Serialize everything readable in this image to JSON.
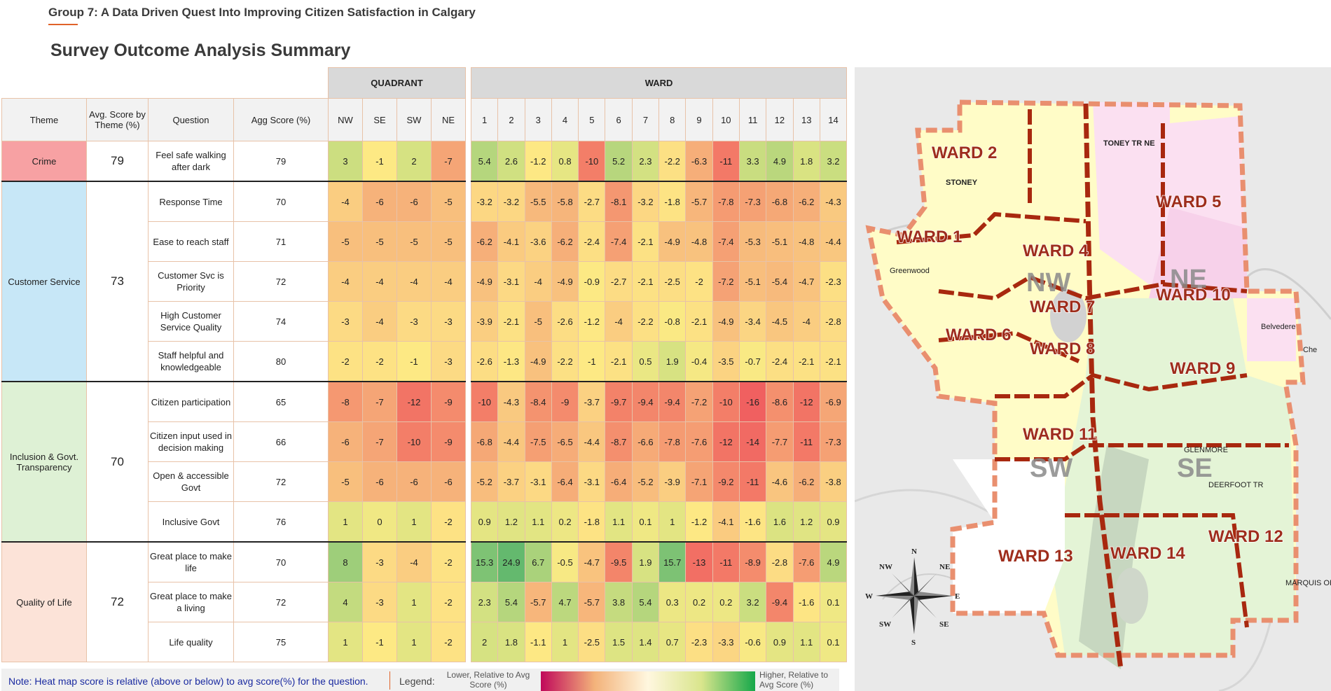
{
  "header": {
    "title": "Group 7: A Data Driven Quest Into Improving Citizen Satisfaction in Calgary",
    "subtitle": "Survey Outcome Analysis Summary"
  },
  "table": {
    "group_quadrant": "QUADRANT",
    "group_ward": "WARD",
    "col_theme": "Theme",
    "col_avg": "Avg. Score by Theme (%)",
    "col_question": "Question",
    "col_agg": "Agg Score (%)",
    "quadrants": [
      "NW",
      "SE",
      "SW",
      "NE"
    ],
    "wards": [
      "1",
      "2",
      "3",
      "4",
      "5",
      "6",
      "7",
      "8",
      "9",
      "10",
      "11",
      "12",
      "13",
      "14"
    ],
    "themes": [
      {
        "name": "Crime",
        "avg": "79",
        "color": "#f7a1a3",
        "rows": 1
      },
      {
        "name": "Customer Service",
        "avg": "73",
        "color": "#c7e7f7",
        "rows": 5
      },
      {
        "name": "Inclusion & Govt. Transparency",
        "avg": "70",
        "color": "#def1d5",
        "rows": 4
      },
      {
        "name": "Quality of Life",
        "avg": "72",
        "color": "#fce3d8",
        "rows": 3
      }
    ],
    "rows": [
      {
        "question": "Feel safe walking after dark",
        "agg": "79",
        "quad": [
          "3",
          "-1",
          "2",
          "-7"
        ],
        "ward": [
          "5.4",
          "2.6",
          "-1.2",
          "0.8",
          "-10",
          "5.2",
          "2.3",
          "-2.2",
          "-6.3",
          "-11",
          "3.3",
          "4.9",
          "1.8",
          "3.2"
        ]
      },
      {
        "question": "Response Time",
        "agg": "70",
        "quad": [
          "-4",
          "-6",
          "-6",
          "-5"
        ],
        "ward": [
          "-3.2",
          "-3.2",
          "-5.5",
          "-5.8",
          "-2.7",
          "-8.1",
          "-3.2",
          "-1.8",
          "-5.7",
          "-7.8",
          "-7.3",
          "-6.8",
          "-6.2",
          "-4.3"
        ]
      },
      {
        "question": "Ease to reach staff",
        "agg": "71",
        "quad": [
          "-5",
          "-5",
          "-5",
          "-5"
        ],
        "ward": [
          "-6.2",
          "-4.1",
          "-3.6",
          "-6.2",
          "-2.4",
          "-7.4",
          "-2.1",
          "-4.9",
          "-4.8",
          "-7.4",
          "-5.3",
          "-5.1",
          "-4.8",
          "-4.4"
        ]
      },
      {
        "question": "Customer Svc is Priority",
        "agg": "72",
        "quad": [
          "-4",
          "-4",
          "-4",
          "-4"
        ],
        "ward": [
          "-4.9",
          "-3.1",
          "-4",
          "-4.9",
          "-0.9",
          "-2.7",
          "-2.1",
          "-2.5",
          "-2",
          "-7.2",
          "-5.1",
          "-5.4",
          "-4.7",
          "-2.3"
        ]
      },
      {
        "question": "High Customer Service Quality",
        "agg": "74",
        "quad": [
          "-3",
          "-4",
          "-3",
          "-3"
        ],
        "ward": [
          "-3.9",
          "-2.1",
          "-5",
          "-2.6",
          "-1.2",
          "-4",
          "-2.2",
          "-0.8",
          "-2.1",
          "-4.9",
          "-3.4",
          "-4.5",
          "-4",
          "-2.8"
        ]
      },
      {
        "question": "Staff helpful and knowledgeable",
        "agg": "80",
        "quad": [
          "-2",
          "-2",
          "-1",
          "-3"
        ],
        "ward": [
          "-2.6",
          "-1.3",
          "-4.9",
          "-2.2",
          "-1",
          "-2.1",
          "0.5",
          "1.9",
          "-0.4",
          "-3.5",
          "-0.7",
          "-2.4",
          "-2.1",
          "-2.1"
        ]
      },
      {
        "question": "Citizen participation",
        "agg": "65",
        "quad": [
          "-8",
          "-7",
          "-12",
          "-9"
        ],
        "ward": [
          "-10",
          "-4.3",
          "-8.4",
          "-9",
          "-3.7",
          "-9.7",
          "-9.4",
          "-9.4",
          "-7.2",
          "-10",
          "-16",
          "-8.6",
          "-12",
          "-6.9"
        ]
      },
      {
        "question": "Citizen input used in decision making",
        "agg": "66",
        "quad": [
          "-6",
          "-7",
          "-10",
          "-9"
        ],
        "ward": [
          "-6.8",
          "-4.4",
          "-7.5",
          "-6.5",
          "-4.4",
          "-8.7",
          "-6.6",
          "-7.8",
          "-7.6",
          "-12",
          "-14",
          "-7.7",
          "-11",
          "-7.3"
        ]
      },
      {
        "question": "Open & accessible Govt",
        "agg": "72",
        "quad": [
          "-5",
          "-6",
          "-6",
          "-6"
        ],
        "ward": [
          "-5.2",
          "-3.7",
          "-3.1",
          "-6.4",
          "-3.1",
          "-6.4",
          "-5.2",
          "-3.9",
          "-7.1",
          "-9.2",
          "-11",
          "-4.6",
          "-6.2",
          "-3.8"
        ]
      },
      {
        "question": "Inclusive Govt",
        "agg": "76",
        "quad": [
          "1",
          "0",
          "1",
          "-2"
        ],
        "ward": [
          "0.9",
          "1.2",
          "1.1",
          "0.2",
          "-1.8",
          "1.1",
          "0.1",
          "1",
          "-1.2",
          "-4.1",
          "-1.6",
          "1.6",
          "1.2",
          "0.9"
        ]
      },
      {
        "question": "Great place to make life",
        "agg": "70",
        "quad": [
          "8",
          "-3",
          "-4",
          "-2"
        ],
        "ward": [
          "15.3",
          "24.9",
          "6.7",
          "-0.5",
          "-4.7",
          "-9.5",
          "1.9",
          "15.7",
          "-13",
          "-11",
          "-8.9",
          "-2.8",
          "-7.6",
          "4.9"
        ]
      },
      {
        "question": "Great place to make a living",
        "agg": "72",
        "quad": [
          "4",
          "-3",
          "1",
          "-2"
        ],
        "ward": [
          "2.3",
          "5.4",
          "-5.7",
          "4.7",
          "-5.7",
          "3.8",
          "5.4",
          "0.3",
          "0.2",
          "0.2",
          "3.2",
          "-9.4",
          "-1.6",
          "0.1"
        ]
      },
      {
        "question": "Life quality",
        "agg": "75",
        "quad": [
          "1",
          "-1",
          "1",
          "-2"
        ],
        "ward": [
          "2",
          "1.8",
          "-1.1",
          "1",
          "-2.5",
          "1.5",
          "1.4",
          "0.7",
          "-2.3",
          "-3.3",
          "-0.6",
          "0.9",
          "1.1",
          "0.1"
        ]
      }
    ]
  },
  "footer": {
    "note": "Note: Heat map score is relative (above or below) to avg score(%) for the question.",
    "legend_label": "Legend:",
    "legend_low": "Lower, Relative to Avg Score (%)",
    "legend_high": "Higher, Relative to Avg Score (%)",
    "legend_colors": {
      "low": "#c0085a",
      "mid": "#fff7df",
      "high": "#15a84a"
    }
  },
  "map": {
    "wards": [
      "WARD 1",
      "WARD 2",
      "WARD 4",
      "WARD 5",
      "WARD 6",
      "WARD 7",
      "WARD 8",
      "WARD 9",
      "WARD 10",
      "WARD 11",
      "WARD 12",
      "WARD 13",
      "WARD 14"
    ],
    "quadrants": [
      "NW",
      "NE",
      "SW",
      "SE"
    ],
    "places": [
      "TONEY TR NE",
      "STONEY",
      "GLENMORE",
      "DEERFOOT TR",
      "MARQUIS OF LORNE TR",
      "Che",
      "Greenwood",
      "Belvedere"
    ],
    "compass": [
      "N",
      "S",
      "E",
      "W",
      "NE",
      "NW",
      "SE",
      "SW"
    ]
  }
}
